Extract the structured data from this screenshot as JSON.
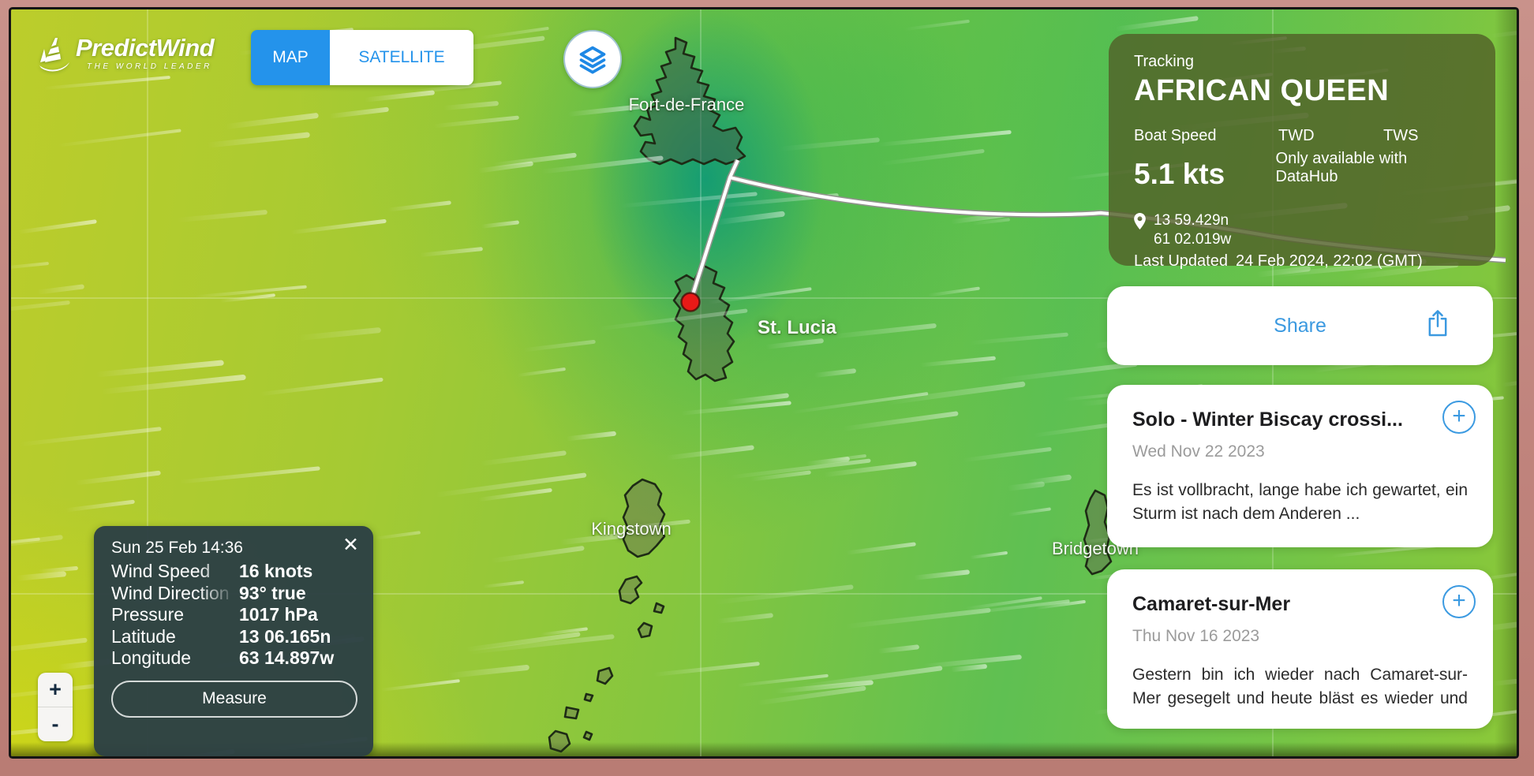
{
  "brand": {
    "name": "PredictWind",
    "tagline": "THE WORLD LEADER"
  },
  "toggle": {
    "map_label": "MAP",
    "satellite_label": "SATELLITE"
  },
  "tracking": {
    "section_label": "Tracking",
    "boat_name": "AFRICAN QUEEN",
    "boat_speed_label": "Boat Speed",
    "boat_speed_value": "5.1 kts",
    "twd_label": "TWD",
    "tws_label": "TWS",
    "datahub_note": "Only available with DataHub",
    "latitude": "13 59.429n",
    "longitude": "61 02.019w",
    "last_updated_label": "Last Updated",
    "last_updated_value": "24 Feb 2024, 22:02 (GMT)"
  },
  "share": {
    "label": "Share"
  },
  "posts": [
    {
      "title": "Solo - Winter Biscay crossi...",
      "date": "Wed Nov 22 2023",
      "excerpt": "Es ist vollbracht, lange habe ich gewartet, ein Sturm ist nach dem Anderen ..."
    },
    {
      "title": "Camaret-sur-Mer",
      "date": "Thu Nov 16 2023",
      "excerpt": "Gestern bin ich wieder nach Camaret-sur-Mer gesegelt und heute bläst es wieder und ..."
    }
  ],
  "popup": {
    "datetime": "Sun 25 Feb 14:36",
    "rows": [
      {
        "label": "Wind Speed",
        "value": "16 knots"
      },
      {
        "label": "Wind Direction",
        "value": "93° true"
      },
      {
        "label": "Pressure",
        "value": "1017 hPa"
      },
      {
        "label": "Latitude",
        "value": "13 06.165n"
      },
      {
        "label": "Longitude",
        "value": "63 14.897w"
      }
    ],
    "measure_label": "Measure",
    "close_glyph": "✕"
  },
  "map": {
    "labels": [
      {
        "text": "Fort-de-France"
      },
      {
        "text": "St. Lucia"
      },
      {
        "text": "Kingstown"
      },
      {
        "text": "Bridgetown"
      }
    ],
    "marker": {
      "name": "boat-position"
    }
  },
  "zoom_controls": {
    "zoom_in": "+",
    "zoom_out": "-"
  },
  "colors": {
    "accent_blue": "#2493eb",
    "marker_red": "#e81a17",
    "panel_olive": "rgba(82,96,40,0.82)"
  }
}
